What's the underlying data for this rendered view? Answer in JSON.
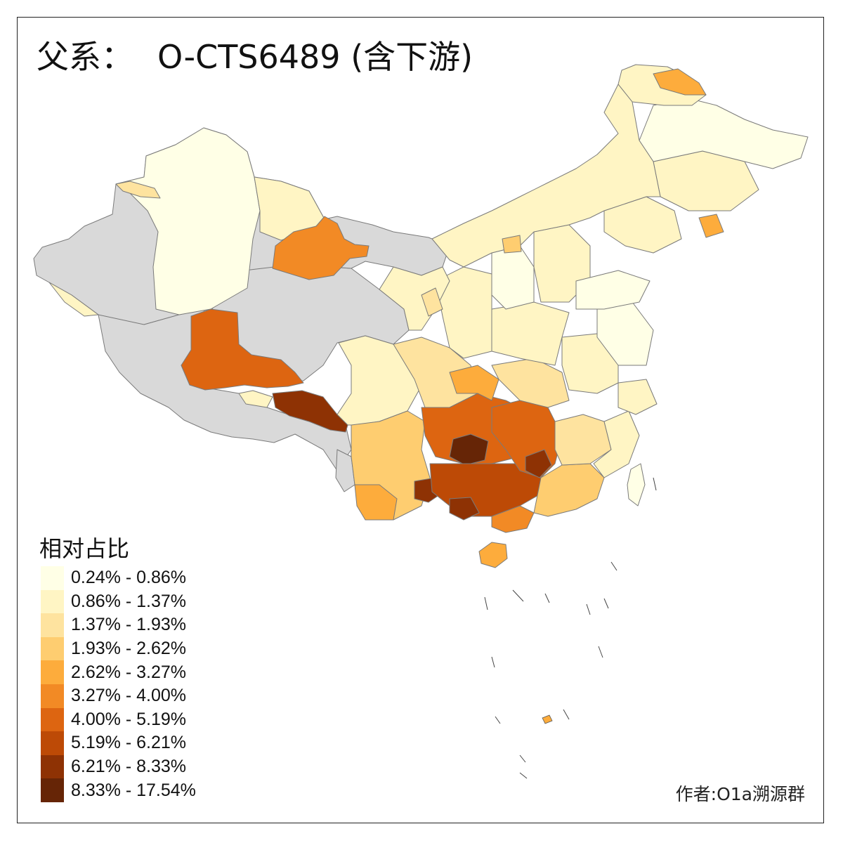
{
  "title": {
    "prefix": "父系：",
    "haplogroup": "O-CTS6489 (含下游)"
  },
  "legend": {
    "title": "相对占比",
    "no_data_color": "#d9d9d9",
    "items": [
      {
        "label": "0.24% - 0.86%",
        "color": "#ffffe6"
      },
      {
        "label": "0.86% - 1.37%",
        "color": "#fff5c4"
      },
      {
        "label": "1.37% - 1.93%",
        "color": "#fee39f"
      },
      {
        "label": "1.93% - 2.62%",
        "color": "#fecd70"
      },
      {
        "label": "2.62% - 3.27%",
        "color": "#fdac3c"
      },
      {
        "label": "3.27% - 4.00%",
        "color": "#f28a25"
      },
      {
        "label": "4.00% - 5.19%",
        "color": "#dd6511"
      },
      {
        "label": "5.19% - 6.21%",
        "color": "#bd4a06"
      },
      {
        "label": "6.21% - 8.33%",
        "color": "#8e3204"
      },
      {
        "label": "8.33% - 17.54%",
        "color": "#662506"
      }
    ]
  },
  "credit": "作者:O1a溯源群"
}
